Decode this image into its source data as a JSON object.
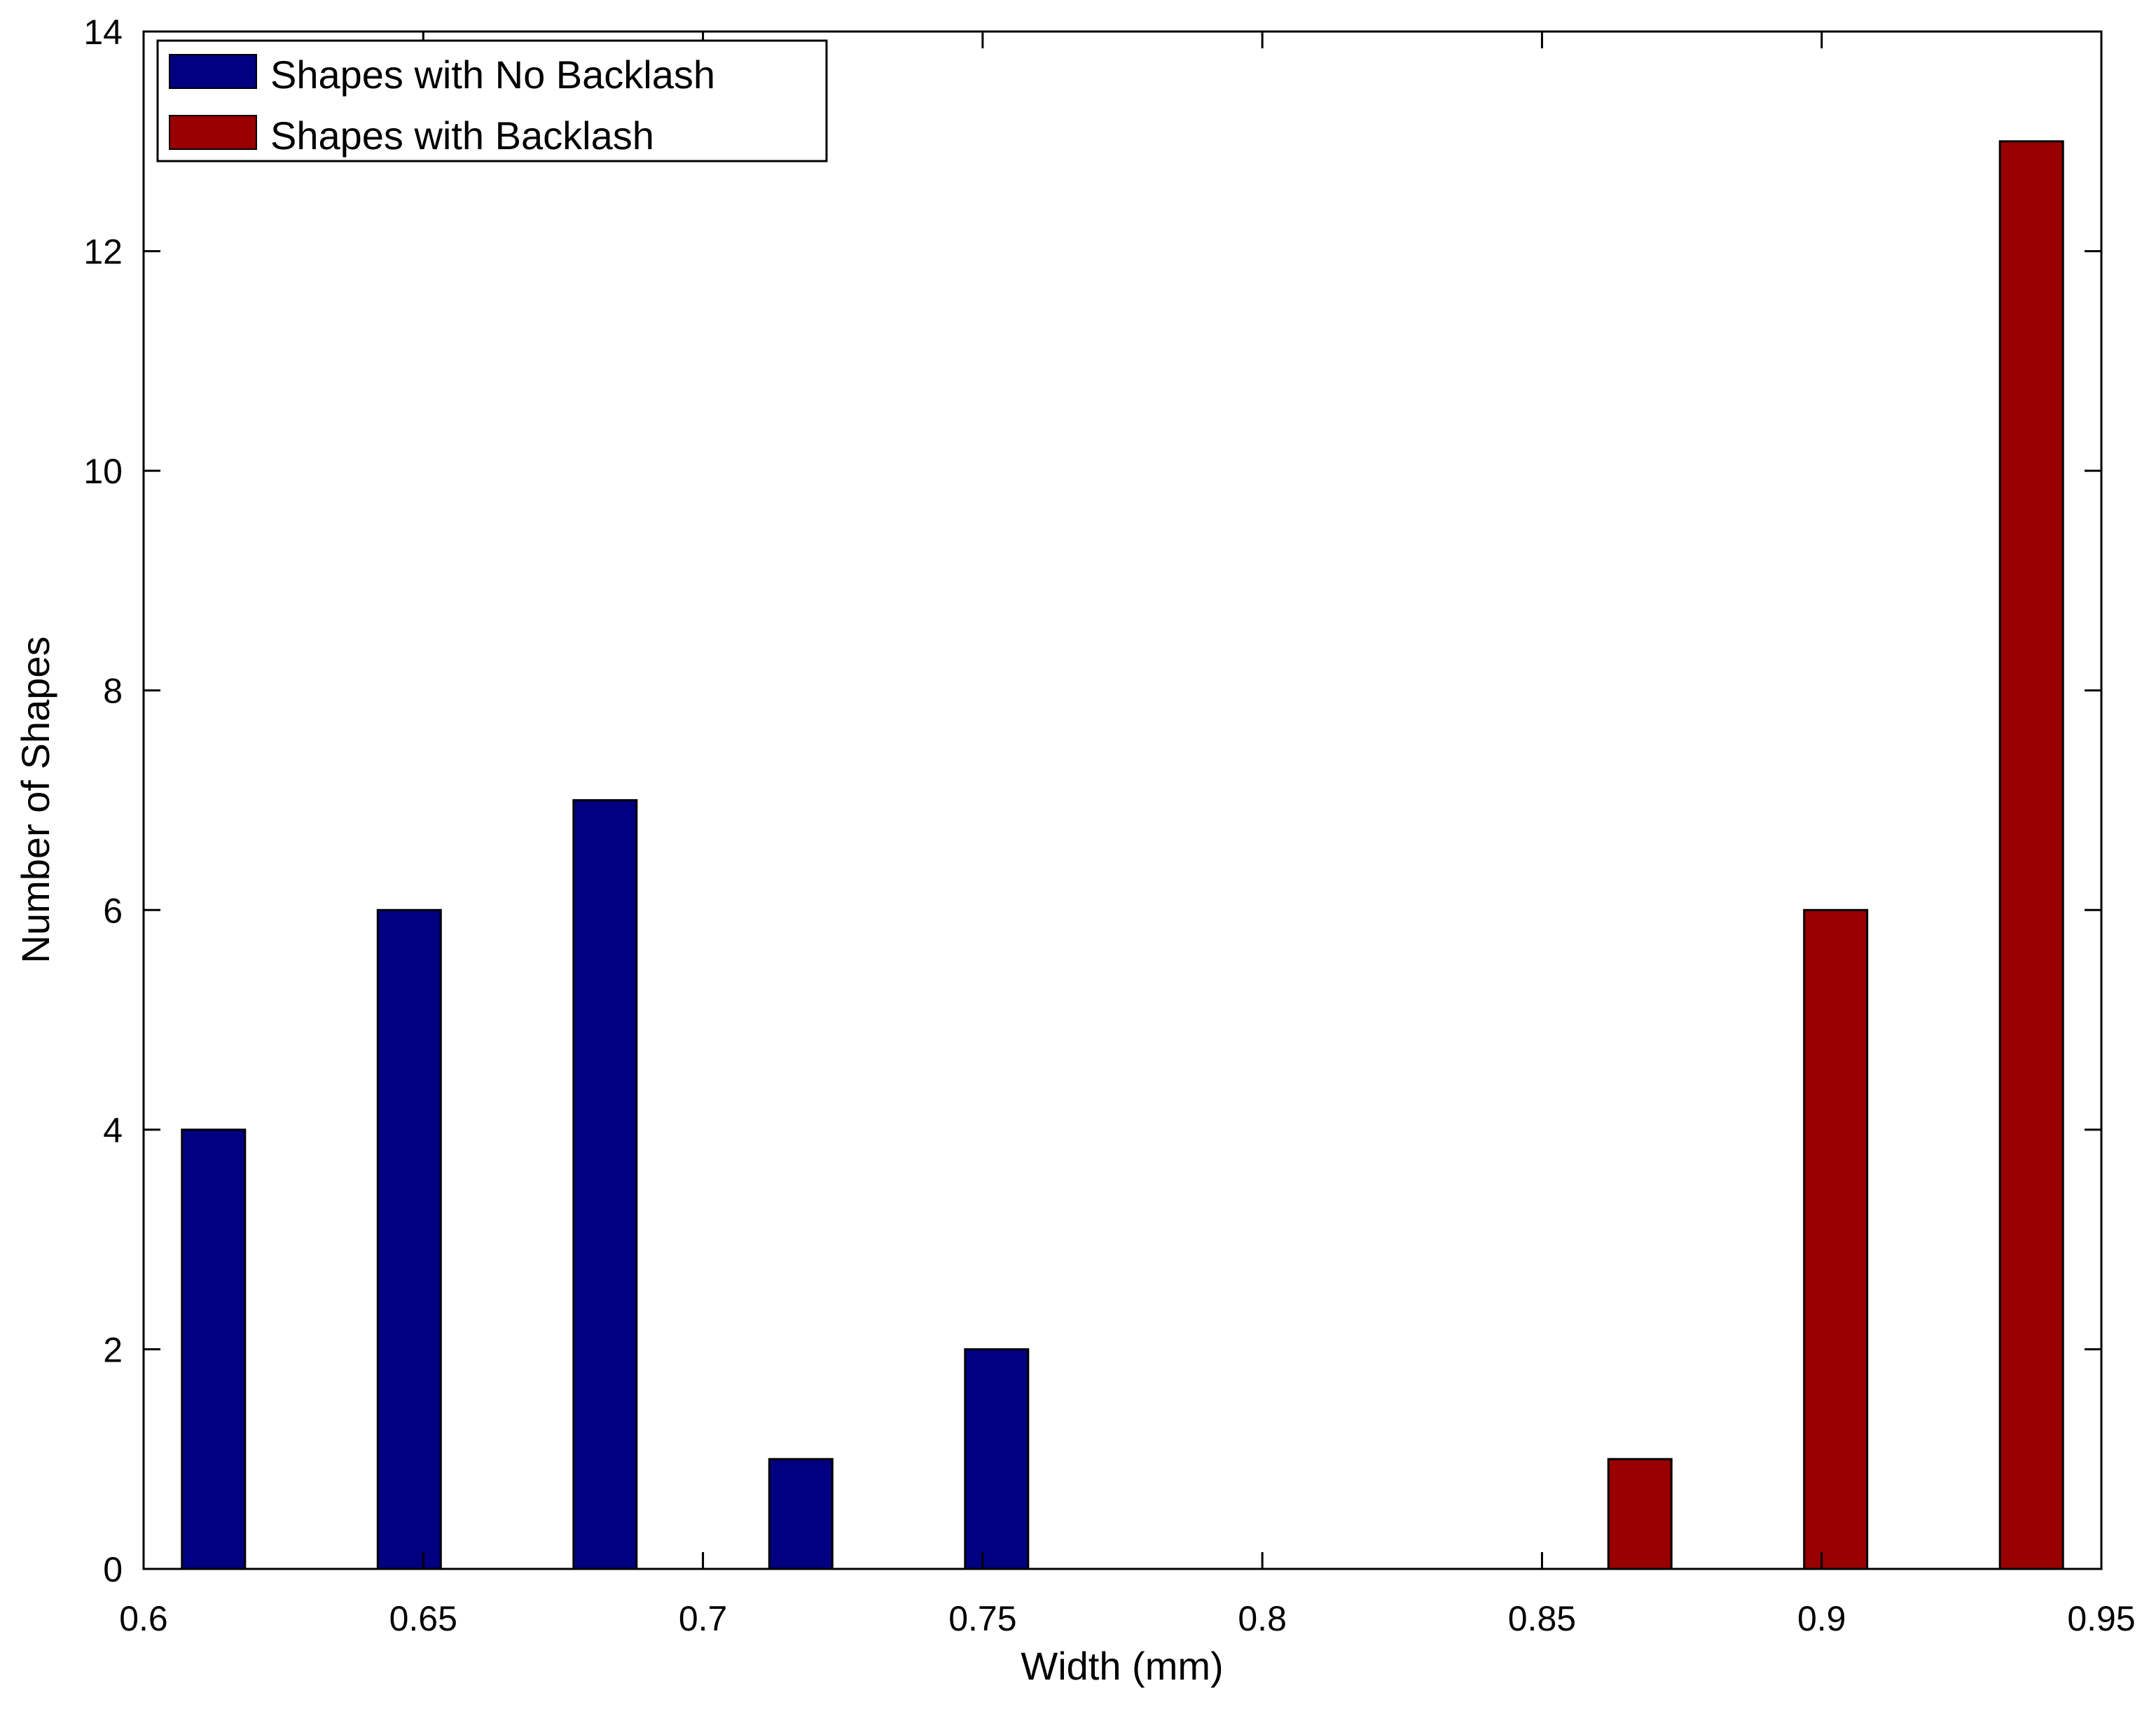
{
  "chart_data": {
    "type": "bar",
    "title": "",
    "xlabel": "Width (mm)",
    "ylabel": "Number of Shapes",
    "xlim": [
      0.6,
      0.95
    ],
    "ylim": [
      0,
      14
    ],
    "xticks": [
      "0.6",
      "0.65",
      "0.7",
      "0.75",
      "0.8",
      "0.85",
      "0.9",
      "0.95"
    ],
    "yticks": [
      "0",
      "2",
      "4",
      "6",
      "8",
      "10",
      "12",
      "14"
    ],
    "grid": false,
    "legend_position": "top-left",
    "series": [
      {
        "name": "Shapes with No Backlash",
        "color": "#000080",
        "x": [
          0.6125,
          0.6475,
          0.6825,
          0.7175,
          0.7525
        ],
        "values": [
          4,
          6,
          7,
          1,
          2
        ]
      },
      {
        "name": "Shapes with Backlash",
        "color": "#990000",
        "x": [
          0.8675,
          0.9025,
          0.9375
        ],
        "values": [
          1,
          6,
          13
        ]
      }
    ]
  }
}
